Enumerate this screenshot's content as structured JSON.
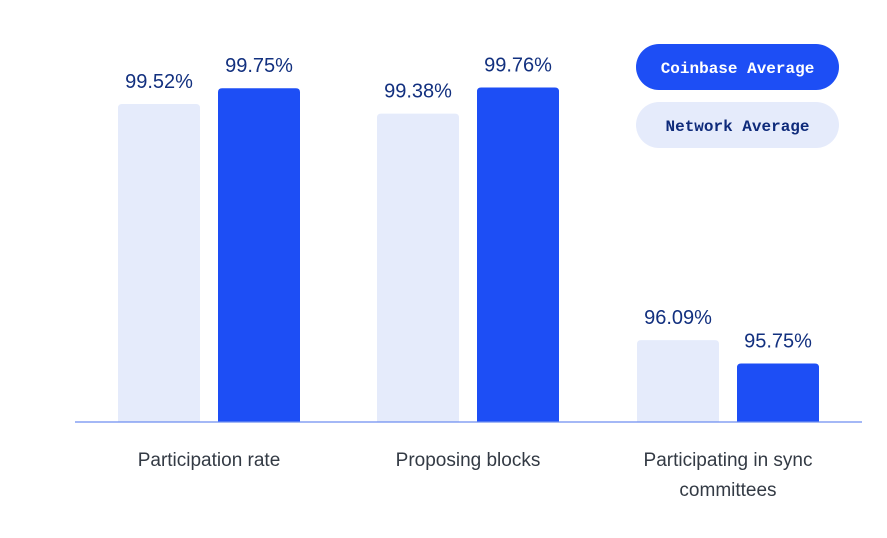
{
  "chart_data": {
    "type": "bar",
    "categories": [
      "Participation rate",
      "Proposing blocks",
      "Participating in sync committees"
    ],
    "series": [
      {
        "name": "Network Average",
        "color": "#e5ebfb",
        "text_color": "#0e2a7a",
        "values": [
          99.52,
          99.38,
          96.09
        ],
        "value_labels": [
          "99.52%",
          "99.38%",
          "96.09%"
        ]
      },
      {
        "name": "Coinbase Average",
        "color": "#1d4ef5",
        "text_color": "#ffffff",
        "values": [
          99.75,
          99.76,
          95.75
        ],
        "value_labels": [
          "99.75%",
          "99.76%",
          "95.75%"
        ]
      }
    ],
    "ylim": [
      94.9,
      100
    ]
  }
}
